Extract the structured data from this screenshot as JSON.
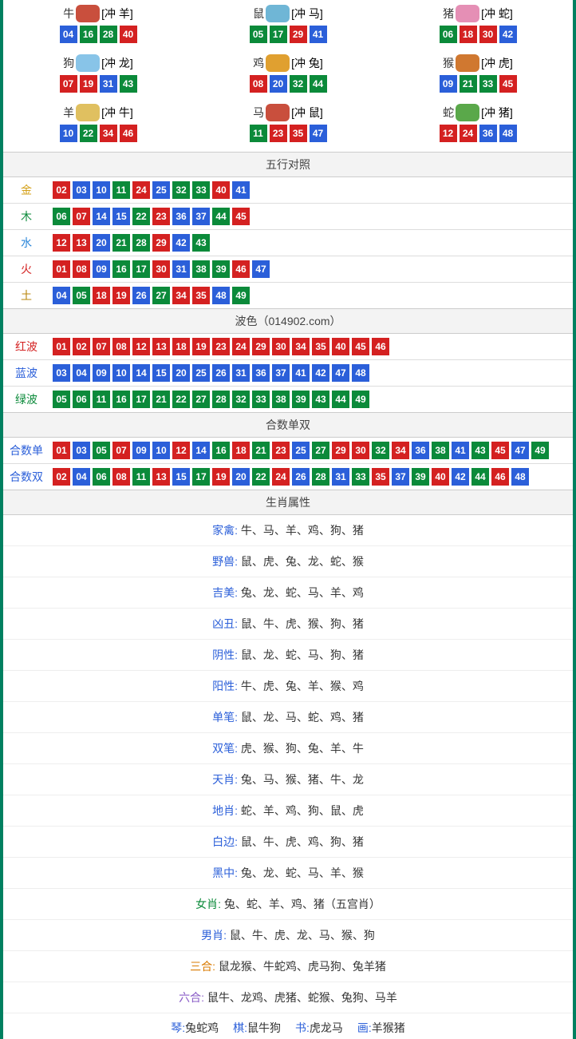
{
  "colors": {
    "red": "#d42121",
    "blue": "#2b5fd9",
    "green": "#0b8a3a",
    "border": "#008060"
  },
  "zodiac": [
    {
      "name": "牛",
      "clash": "[冲 羊]",
      "icon_color": "#c94f3d",
      "nums": [
        {
          "v": "04",
          "c": "blue"
        },
        {
          "v": "16",
          "c": "green"
        },
        {
          "v": "28",
          "c": "green"
        },
        {
          "v": "40",
          "c": "red"
        }
      ]
    },
    {
      "name": "鼠",
      "clash": "[冲 马]",
      "icon_color": "#6fb6d6",
      "nums": [
        {
          "v": "05",
          "c": "green"
        },
        {
          "v": "17",
          "c": "green"
        },
        {
          "v": "29",
          "c": "red"
        },
        {
          "v": "41",
          "c": "blue"
        }
      ]
    },
    {
      "name": "猪",
      "clash": "[冲 蛇]",
      "icon_color": "#e58fb5",
      "nums": [
        {
          "v": "06",
          "c": "green"
        },
        {
          "v": "18",
          "c": "red"
        },
        {
          "v": "30",
          "c": "red"
        },
        {
          "v": "42",
          "c": "blue"
        }
      ]
    },
    {
      "name": "狗",
      "clash": "[冲 龙]",
      "icon_color": "#88c4e8",
      "nums": [
        {
          "v": "07",
          "c": "red"
        },
        {
          "v": "19",
          "c": "red"
        },
        {
          "v": "31",
          "c": "blue"
        },
        {
          "v": "43",
          "c": "green"
        }
      ]
    },
    {
      "name": "鸡",
      "clash": "[冲 兔]",
      "icon_color": "#e0a030",
      "nums": [
        {
          "v": "08",
          "c": "red"
        },
        {
          "v": "20",
          "c": "blue"
        },
        {
          "v": "32",
          "c": "green"
        },
        {
          "v": "44",
          "c": "green"
        }
      ]
    },
    {
      "name": "猴",
      "clash": "[冲 虎]",
      "icon_color": "#d07830",
      "nums": [
        {
          "v": "09",
          "c": "blue"
        },
        {
          "v": "21",
          "c": "green"
        },
        {
          "v": "33",
          "c": "green"
        },
        {
          "v": "45",
          "c": "red"
        }
      ]
    },
    {
      "name": "羊",
      "clash": "[冲 牛]",
      "icon_color": "#e0c060",
      "nums": [
        {
          "v": "10",
          "c": "blue"
        },
        {
          "v": "22",
          "c": "green"
        },
        {
          "v": "34",
          "c": "red"
        },
        {
          "v": "46",
          "c": "red"
        }
      ]
    },
    {
      "name": "马",
      "clash": "[冲 鼠]",
      "icon_color": "#c94f3d",
      "nums": [
        {
          "v": "11",
          "c": "green"
        },
        {
          "v": "23",
          "c": "red"
        },
        {
          "v": "35",
          "c": "red"
        },
        {
          "v": "47",
          "c": "blue"
        }
      ]
    },
    {
      "name": "蛇",
      "clash": "[冲 猪]",
      "icon_color": "#5aa84a",
      "nums": [
        {
          "v": "12",
          "c": "red"
        },
        {
          "v": "24",
          "c": "red"
        },
        {
          "v": "36",
          "c": "blue"
        },
        {
          "v": "48",
          "c": "blue"
        }
      ]
    }
  ],
  "sections": {
    "wuxing_title": "五行对照",
    "bose_title": "波色（014902.com）",
    "heshu_title": "合数单双",
    "shengxiao_title": "生肖属性"
  },
  "wuxing": [
    {
      "label": "金",
      "cls": "gold",
      "nums": [
        {
          "v": "02",
          "c": "red"
        },
        {
          "v": "03",
          "c": "blue"
        },
        {
          "v": "10",
          "c": "blue"
        },
        {
          "v": "11",
          "c": "green"
        },
        {
          "v": "24",
          "c": "red"
        },
        {
          "v": "25",
          "c": "blue"
        },
        {
          "v": "32",
          "c": "green"
        },
        {
          "v": "33",
          "c": "green"
        },
        {
          "v": "40",
          "c": "red"
        },
        {
          "v": "41",
          "c": "blue"
        }
      ]
    },
    {
      "label": "木",
      "cls": "wood",
      "nums": [
        {
          "v": "06",
          "c": "green"
        },
        {
          "v": "07",
          "c": "red"
        },
        {
          "v": "14",
          "c": "blue"
        },
        {
          "v": "15",
          "c": "blue"
        },
        {
          "v": "22",
          "c": "green"
        },
        {
          "v": "23",
          "c": "red"
        },
        {
          "v": "36",
          "c": "blue"
        },
        {
          "v": "37",
          "c": "blue"
        },
        {
          "v": "44",
          "c": "green"
        },
        {
          "v": "45",
          "c": "red"
        }
      ]
    },
    {
      "label": "水",
      "cls": "water",
      "nums": [
        {
          "v": "12",
          "c": "red"
        },
        {
          "v": "13",
          "c": "red"
        },
        {
          "v": "20",
          "c": "blue"
        },
        {
          "v": "21",
          "c": "green"
        },
        {
          "v": "28",
          "c": "green"
        },
        {
          "v": "29",
          "c": "red"
        },
        {
          "v": "42",
          "c": "blue"
        },
        {
          "v": "43",
          "c": "green"
        }
      ]
    },
    {
      "label": "火",
      "cls": "fire",
      "nums": [
        {
          "v": "01",
          "c": "red"
        },
        {
          "v": "08",
          "c": "red"
        },
        {
          "v": "09",
          "c": "blue"
        },
        {
          "v": "16",
          "c": "green"
        },
        {
          "v": "17",
          "c": "green"
        },
        {
          "v": "30",
          "c": "red"
        },
        {
          "v": "31",
          "c": "blue"
        },
        {
          "v": "38",
          "c": "green"
        },
        {
          "v": "39",
          "c": "green"
        },
        {
          "v": "46",
          "c": "red"
        },
        {
          "v": "47",
          "c": "blue"
        }
      ]
    },
    {
      "label": "土",
      "cls": "earth",
      "nums": [
        {
          "v": "04",
          "c": "blue"
        },
        {
          "v": "05",
          "c": "green"
        },
        {
          "v": "18",
          "c": "red"
        },
        {
          "v": "19",
          "c": "red"
        },
        {
          "v": "26",
          "c": "blue"
        },
        {
          "v": "27",
          "c": "green"
        },
        {
          "v": "34",
          "c": "red"
        },
        {
          "v": "35",
          "c": "red"
        },
        {
          "v": "48",
          "c": "blue"
        },
        {
          "v": "49",
          "c": "green"
        }
      ]
    }
  ],
  "bose": [
    {
      "label": "红波",
      "cls": "redt",
      "nums": [
        {
          "v": "01",
          "c": "red"
        },
        {
          "v": "02",
          "c": "red"
        },
        {
          "v": "07",
          "c": "red"
        },
        {
          "v": "08",
          "c": "red"
        },
        {
          "v": "12",
          "c": "red"
        },
        {
          "v": "13",
          "c": "red"
        },
        {
          "v": "18",
          "c": "red"
        },
        {
          "v": "19",
          "c": "red"
        },
        {
          "v": "23",
          "c": "red"
        },
        {
          "v": "24",
          "c": "red"
        },
        {
          "v": "29",
          "c": "red"
        },
        {
          "v": "30",
          "c": "red"
        },
        {
          "v": "34",
          "c": "red"
        },
        {
          "v": "35",
          "c": "red"
        },
        {
          "v": "40",
          "c": "red"
        },
        {
          "v": "45",
          "c": "red"
        },
        {
          "v": "46",
          "c": "red"
        }
      ]
    },
    {
      "label": "蓝波",
      "cls": "bluet",
      "nums": [
        {
          "v": "03",
          "c": "blue"
        },
        {
          "v": "04",
          "c": "blue"
        },
        {
          "v": "09",
          "c": "blue"
        },
        {
          "v": "10",
          "c": "blue"
        },
        {
          "v": "14",
          "c": "blue"
        },
        {
          "v": "15",
          "c": "blue"
        },
        {
          "v": "20",
          "c": "blue"
        },
        {
          "v": "25",
          "c": "blue"
        },
        {
          "v": "26",
          "c": "blue"
        },
        {
          "v": "31",
          "c": "blue"
        },
        {
          "v": "36",
          "c": "blue"
        },
        {
          "v": "37",
          "c": "blue"
        },
        {
          "v": "41",
          "c": "blue"
        },
        {
          "v": "42",
          "c": "blue"
        },
        {
          "v": "47",
          "c": "blue"
        },
        {
          "v": "48",
          "c": "blue"
        }
      ]
    },
    {
      "label": "绿波",
      "cls": "greent",
      "nums": [
        {
          "v": "05",
          "c": "green"
        },
        {
          "v": "06",
          "c": "green"
        },
        {
          "v": "11",
          "c": "green"
        },
        {
          "v": "16",
          "c": "green"
        },
        {
          "v": "17",
          "c": "green"
        },
        {
          "v": "21",
          "c": "green"
        },
        {
          "v": "22",
          "c": "green"
        },
        {
          "v": "27",
          "c": "green"
        },
        {
          "v": "28",
          "c": "green"
        },
        {
          "v": "32",
          "c": "green"
        },
        {
          "v": "33",
          "c": "green"
        },
        {
          "v": "38",
          "c": "green"
        },
        {
          "v": "39",
          "c": "green"
        },
        {
          "v": "43",
          "c": "green"
        },
        {
          "v": "44",
          "c": "green"
        },
        {
          "v": "49",
          "c": "green"
        }
      ]
    }
  ],
  "heshu": [
    {
      "label": "合数单",
      "cls": "bluet",
      "nums": [
        {
          "v": "01",
          "c": "red"
        },
        {
          "v": "03",
          "c": "blue"
        },
        {
          "v": "05",
          "c": "green"
        },
        {
          "v": "07",
          "c": "red"
        },
        {
          "v": "09",
          "c": "blue"
        },
        {
          "v": "10",
          "c": "blue"
        },
        {
          "v": "12",
          "c": "red"
        },
        {
          "v": "14",
          "c": "blue"
        },
        {
          "v": "16",
          "c": "green"
        },
        {
          "v": "18",
          "c": "red"
        },
        {
          "v": "21",
          "c": "green"
        },
        {
          "v": "23",
          "c": "red"
        },
        {
          "v": "25",
          "c": "blue"
        },
        {
          "v": "27",
          "c": "green"
        },
        {
          "v": "29",
          "c": "red"
        },
        {
          "v": "30",
          "c": "red"
        },
        {
          "v": "32",
          "c": "green"
        },
        {
          "v": "34",
          "c": "red"
        },
        {
          "v": "36",
          "c": "blue"
        },
        {
          "v": "38",
          "c": "green"
        },
        {
          "v": "41",
          "c": "blue"
        },
        {
          "v": "43",
          "c": "green"
        },
        {
          "v": "45",
          "c": "red"
        },
        {
          "v": "47",
          "c": "blue"
        },
        {
          "v": "49",
          "c": "green"
        }
      ]
    },
    {
      "label": "合数双",
      "cls": "bluet",
      "nums": [
        {
          "v": "02",
          "c": "red"
        },
        {
          "v": "04",
          "c": "blue"
        },
        {
          "v": "06",
          "c": "green"
        },
        {
          "v": "08",
          "c": "red"
        },
        {
          "v": "11",
          "c": "green"
        },
        {
          "v": "13",
          "c": "red"
        },
        {
          "v": "15",
          "c": "blue"
        },
        {
          "v": "17",
          "c": "green"
        },
        {
          "v": "19",
          "c": "red"
        },
        {
          "v": "20",
          "c": "blue"
        },
        {
          "v": "22",
          "c": "green"
        },
        {
          "v": "24",
          "c": "red"
        },
        {
          "v": "26",
          "c": "blue"
        },
        {
          "v": "28",
          "c": "green"
        },
        {
          "v": "31",
          "c": "blue"
        },
        {
          "v": "33",
          "c": "green"
        },
        {
          "v": "35",
          "c": "red"
        },
        {
          "v": "37",
          "c": "blue"
        },
        {
          "v": "39",
          "c": "green"
        },
        {
          "v": "40",
          "c": "red"
        },
        {
          "v": "42",
          "c": "blue"
        },
        {
          "v": "44",
          "c": "green"
        },
        {
          "v": "46",
          "c": "red"
        },
        {
          "v": "48",
          "c": "blue"
        }
      ]
    }
  ],
  "attrs": [
    {
      "label": "家禽",
      "cls": "",
      "value": "牛、马、羊、鸡、狗、猪"
    },
    {
      "label": "野兽",
      "cls": "",
      "value": "鼠、虎、兔、龙、蛇、猴"
    },
    {
      "label": "吉美",
      "cls": "",
      "value": "兔、龙、蛇、马、羊、鸡"
    },
    {
      "label": "凶丑",
      "cls": "",
      "value": "鼠、牛、虎、猴、狗、猪"
    },
    {
      "label": "阴性",
      "cls": "",
      "value": "鼠、龙、蛇、马、狗、猪"
    },
    {
      "label": "阳性",
      "cls": "",
      "value": "牛、虎、兔、羊、猴、鸡"
    },
    {
      "label": "单笔",
      "cls": "",
      "value": "鼠、龙、马、蛇、鸡、猪"
    },
    {
      "label": "双笔",
      "cls": "",
      "value": "虎、猴、狗、兔、羊、牛"
    },
    {
      "label": "天肖",
      "cls": "",
      "value": "兔、马、猴、猪、牛、龙"
    },
    {
      "label": "地肖",
      "cls": "",
      "value": "蛇、羊、鸡、狗、鼠、虎"
    },
    {
      "label": "白边",
      "cls": "",
      "value": "鼠、牛、虎、鸡、狗、猪"
    },
    {
      "label": "黑中",
      "cls": "",
      "value": "兔、龙、蛇、马、羊、猴"
    },
    {
      "label": "女肖",
      "cls": "green",
      "value": "兔、蛇、羊、鸡、猪（五宫肖）"
    },
    {
      "label": "男肖",
      "cls": "",
      "value": "鼠、牛、虎、龙、马、猴、狗"
    },
    {
      "label": "三合",
      "cls": "orange",
      "value": "鼠龙猴、牛蛇鸡、虎马狗、兔羊猪"
    },
    {
      "label": "六合",
      "cls": "purple",
      "value": "鼠牛、龙鸡、虎猪、蛇猴、兔狗、马羊"
    }
  ],
  "fourbox": [
    {
      "label": "琴:",
      "value": "兔蛇鸡"
    },
    {
      "label": "棋:",
      "value": "鼠牛狗"
    },
    {
      "label": "书:",
      "value": "虎龙马"
    },
    {
      "label": "画:",
      "value": "羊猴猪"
    }
  ]
}
